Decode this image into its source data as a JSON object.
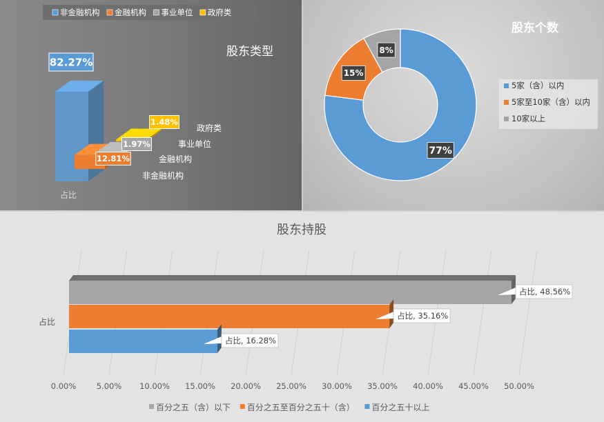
{
  "chart_data": [
    {
      "type": "bar",
      "title": "股东类型",
      "categories": [
        "非金融机构",
        "金融机构",
        "事业单位",
        "政府类"
      ],
      "series_label": "占比",
      "values": [
        82.27,
        12.81,
        1.97,
        1.48
      ],
      "value_labels": [
        "82.27%",
        "12.81%",
        "1.97%",
        "1.48%"
      ],
      "legend": [
        "非金融机构",
        "金融机构",
        "事业单位",
        "政府类"
      ],
      "legend_position": "top",
      "colors": [
        "#5b9bd5",
        "#ed7d31",
        "#a5a5a5",
        "#ffc000"
      ],
      "ylim": [
        0,
        100
      ]
    },
    {
      "type": "pie",
      "title": "股东个数",
      "labels": [
        "5家（含）以内",
        "5家至10家（含）以内",
        "10家以上"
      ],
      "values": [
        77,
        15,
        8
      ],
      "value_labels": [
        "77%",
        "15%",
        "8%"
      ],
      "legend_position": "right",
      "colors": [
        "#5b9bd5",
        "#ed7d31",
        "#a5a5a5"
      ]
    },
    {
      "type": "bar",
      "orientation": "horizontal",
      "title": "股东持股",
      "category_label": "占比",
      "series": [
        {
          "name": "百分之五（含）以下",
          "value": 48.56,
          "data_label": "占比, 48.56%",
          "color": "#a5a5a5"
        },
        {
          "name": "百分之五至百分之五十（含）",
          "value": 35.16,
          "data_label": "占比, 35.16%",
          "color": "#ed7d31"
        },
        {
          "name": "百分之五十以上",
          "value": 16.28,
          "data_label": "占比, 16.28%",
          "color": "#5b9bd5"
        }
      ],
      "xlim": [
        0,
        50
      ],
      "x_ticks": [
        "0.00%",
        "5.00%",
        "10.00%",
        "15.00%",
        "20.00%",
        "25.00%",
        "30.00%",
        "35.00%",
        "40.00%",
        "45.00%",
        "50.00%"
      ],
      "legend_position": "bottom",
      "grid": true
    }
  ]
}
